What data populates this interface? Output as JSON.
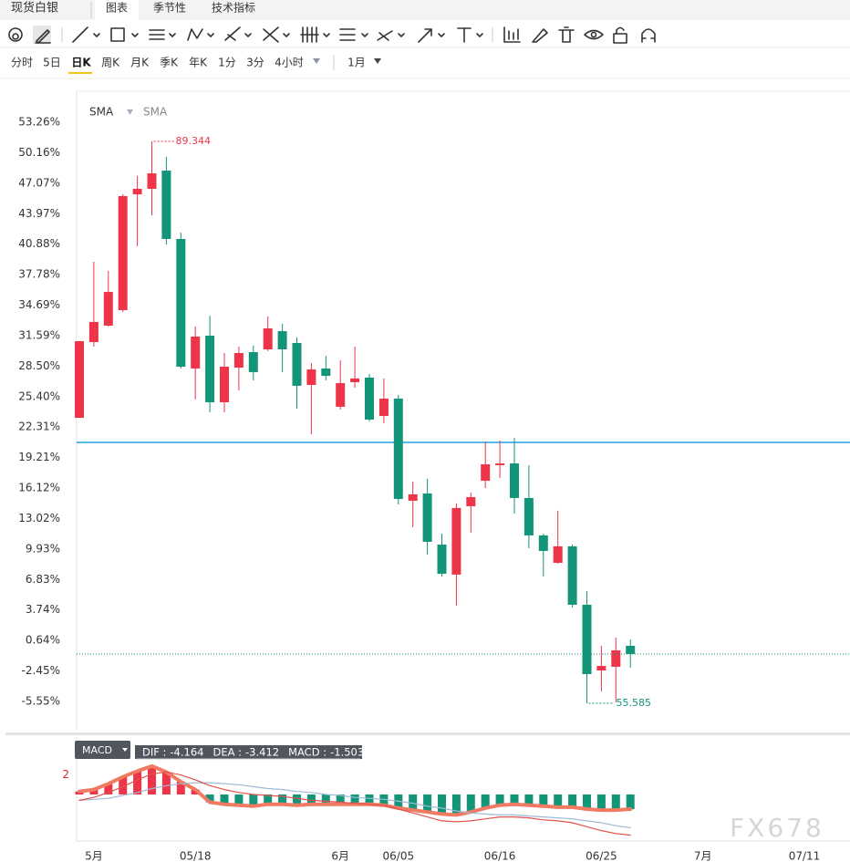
{
  "header": {
    "title": "现货白银",
    "tabs": [
      "图表",
      "季节性",
      "技术指标"
    ]
  },
  "periods": [
    "分时",
    "5日",
    "日K",
    "周K",
    "月K",
    "季K",
    "年K",
    "1分",
    "3分",
    "4小时",
    "1月"
  ],
  "watermark": "FX678",
  "chart_data": [
    {
      "type": "candlestick",
      "legend": [
        "SMA",
        "SMA"
      ],
      "categories": [
        null,
        "5月",
        null,
        null,
        null,
        null,
        null,
        null,
        "05/18",
        null,
        null,
        null,
        null,
        null,
        null,
        null,
        null,
        null,
        "6月",
        null,
        null,
        null,
        "06/05",
        null,
        null,
        null,
        null,
        null,
        null,
        "06/16",
        null,
        null,
        null,
        null,
        null,
        null,
        "06/25",
        null,
        null,
        null,
        null,
        null,
        null,
        "7月",
        null,
        null,
        null,
        null,
        null,
        null,
        "07/11"
      ],
      "open": [
        23.25,
        30.94,
        32.61,
        34.18,
        45.94,
        46.5,
        48.35,
        41.41,
        28.26,
        31.59,
        24.83,
        28.35,
        29.92,
        30.2,
        32.05,
        30.85,
        26.59,
        28.26,
        24.37,
        26.87,
        27.33,
        23.44,
        25.2,
        14.83,
        15.57,
        10.38,
        7.33,
        14.27,
        16.86,
        18.44,
        18.62,
        15.11,
        11.31,
        8.53,
        10.2,
        4.27,
        -2.4,
        -2.03,
        0.1,
        null,
        null,
        null,
        null,
        null,
        null,
        null,
        null,
        null,
        null,
        null,
        null
      ],
      "high": [
        31.03,
        39.09,
        38.16,
        45.94,
        47.8,
        51.32,
        49.74,
        42.05,
        32.52,
        33.63,
        29.83,
        30.48,
        30.57,
        33.53,
        32.79,
        31.4,
        28.81,
        29.55,
        29.09,
        30.48,
        27.7,
        27.24,
        25.57,
        16.77,
        17.05,
        11.49,
        14.55,
        15.66,
        20.85,
        20.94,
        21.22,
        18.44,
        11.49,
        13.81,
        10.38,
        5.66,
        0.1,
        0.94,
        0.75,
        null,
        null,
        null,
        null,
        null,
        null,
        null,
        null,
        null,
        null,
        null,
        null
      ],
      "low": [
        23.25,
        30.48,
        32.52,
        34.0,
        40.67,
        43.81,
        40.85,
        28.26,
        25.11,
        23.81,
        23.81,
        26.03,
        27.05,
        30.02,
        27.89,
        24.18,
        21.59,
        27.05,
        24.09,
        26.31,
        22.88,
        22.7,
        14.46,
        12.14,
        9.36,
        7.14,
        4.18,
        11.59,
        16.12,
        17.14,
        13.53,
        10.01,
        7.14,
        8.44,
        3.99,
        -5.73,
        -4.53,
        -5.64,
        -2.12,
        null,
        null,
        null,
        null,
        null,
        null,
        null,
        null,
        null,
        null,
        null,
        null
      ],
      "close": [
        31.03,
        32.98,
        36.03,
        45.76,
        46.5,
        48.07,
        41.41,
        28.44,
        31.5,
        24.83,
        28.44,
        29.83,
        27.89,
        32.33,
        30.2,
        26.5,
        28.16,
        27.51,
        26.77,
        27.24,
        23.07,
        25.2,
        15.01,
        15.48,
        10.66,
        7.42,
        14.09,
        15.2,
        18.53,
        18.62,
        15.11,
        11.31,
        9.73,
        10.2,
        4.27,
        -2.77,
        -1.94,
        -0.36,
        -0.73,
        null,
        null,
        null,
        null,
        null,
        null,
        null,
        null,
        null,
        null,
        null,
        null
      ],
      "up_color": "#ee3448",
      "down_color": "#13957a",
      "max_label": "89.344",
      "min_label": "55.585",
      "hline": 20.75,
      "hline_color": "#1ea2e6",
      "ylim": [
        -8.42,
        56.41
      ],
      "yticks": [
        {
          "value": 53.26,
          "label": "53.26%"
        },
        {
          "value": 50.16,
          "label": "50.16%"
        },
        {
          "value": 47.07,
          "label": "47.07%"
        },
        {
          "value": 43.97,
          "label": "43.97%"
        },
        {
          "value": 40.88,
          "label": "40.88%"
        },
        {
          "value": 37.78,
          "label": "37.78%"
        },
        {
          "value": 34.69,
          "label": "34.69%"
        },
        {
          "value": 31.59,
          "label": "31.59%"
        },
        {
          "value": 28.5,
          "label": "28.50%"
        },
        {
          "value": 25.4,
          "label": "25.40%"
        },
        {
          "value": 22.31,
          "label": "22.31%"
        },
        {
          "value": 19.21,
          "label": "19.21%"
        },
        {
          "value": 16.12,
          "label": "16.12%"
        },
        {
          "value": 13.02,
          "label": "13.02%"
        },
        {
          "value": 9.93,
          "label": "9.93%"
        },
        {
          "value": 6.83,
          "label": "6.83%"
        },
        {
          "value": 3.74,
          "label": "3.74%"
        },
        {
          "value": 0.64,
          "label": "0.64%"
        },
        {
          "value": -2.45,
          "label": "-2.45%"
        },
        {
          "value": -5.55,
          "label": "-5.55%"
        }
      ]
    },
    {
      "type": "macd",
      "title": "MACD",
      "series": [
        {
          "name": "DIF :",
          "color": "#e0524a",
          "values": [
            -0.6,
            -0.3,
            0.2,
            0.8,
            1.5,
            2.1,
            2.3,
            2.0,
            1.5,
            0.9,
            0.5,
            0.2,
            0.0,
            -0.1,
            -0.2,
            -0.4,
            -0.6,
            -0.7,
            -0.8,
            -0.9,
            -1.0,
            -1.1,
            -1.5,
            -1.9,
            -2.3,
            -2.7,
            -2.8,
            -2.7,
            -2.5,
            -2.3,
            -2.3,
            -2.4,
            -2.6,
            -2.7,
            -2.9,
            -3.3,
            -3.7,
            -4.0,
            -4.164,
            null,
            null,
            null,
            null,
            null,
            null,
            null,
            null,
            null,
            null,
            null,
            null
          ]
        },
        {
          "name": "DEA :",
          "color": "#9fb9d6",
          "values": [
            -0.6,
            -0.5,
            -0.4,
            -0.1,
            0.2,
            0.6,
            0.9,
            1.1,
            1.2,
            1.2,
            1.1,
            1.0,
            0.8,
            0.6,
            0.5,
            0.3,
            0.2,
            0.0,
            -0.1,
            -0.3,
            -0.4,
            -0.5,
            -0.7,
            -0.9,
            -1.2,
            -1.4,
            -1.7,
            -1.9,
            -2.0,
            -2.1,
            -2.1,
            -2.2,
            -2.3,
            -2.4,
            -2.5,
            -2.7,
            -2.9,
            -3.2,
            -3.412,
            null,
            null,
            null,
            null,
            null,
            null,
            null,
            null,
            null,
            null,
            null,
            null
          ]
        },
        {
          "name": "MACD :",
          "color": "#13957a",
          "up_color": "#ee3448",
          "line_color": "#f07a62",
          "values": [
            0.3,
            0.5,
            1.1,
            1.8,
            2.4,
            2.9,
            2.3,
            1.3,
            0.5,
            -0.8,
            -1.0,
            -1.1,
            -1.2,
            -1.0,
            -1.0,
            -1.1,
            -1.0,
            -1.0,
            -1.0,
            -1.0,
            -1.0,
            -1.1,
            -1.4,
            -1.6,
            -1.8,
            -2.0,
            -2.1,
            -1.8,
            -1.4,
            -1.1,
            -1.0,
            -1.1,
            -1.2,
            -1.3,
            -1.3,
            -1.5,
            -1.6,
            -1.6,
            -1.503,
            null,
            null,
            null,
            null,
            null,
            null,
            null,
            null,
            null,
            null,
            null,
            null
          ]
        }
      ],
      "ylim": [
        -4.77,
        5.51
      ],
      "yticks": [
        2
      ]
    }
  ]
}
